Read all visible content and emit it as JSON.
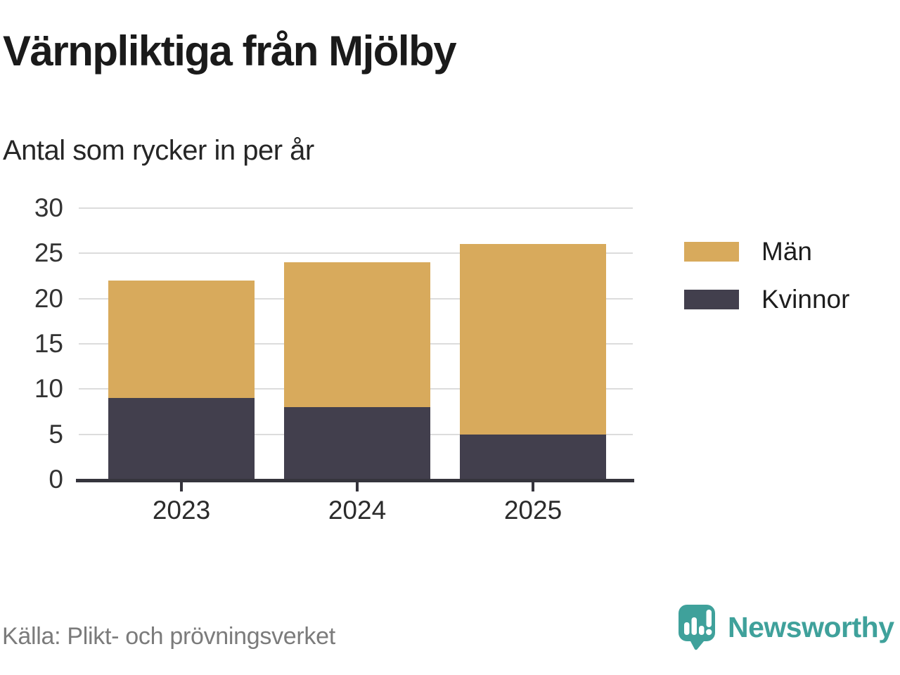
{
  "header": {
    "title": "Värnpliktiga från Mjölby",
    "subtitle": "Antal som rycker in per år"
  },
  "chart_data": {
    "type": "bar",
    "stacked": true,
    "title": "Värnpliktiga från Mjölby",
    "subtitle": "Antal som rycker in per år",
    "categories": [
      "2023",
      "2024",
      "2025"
    ],
    "series": [
      {
        "name": "Män",
        "color": "#d8aa5c",
        "values": [
          13,
          16,
          21
        ]
      },
      {
        "name": "Kvinnor",
        "color": "#423f4d",
        "values": [
          9,
          8,
          5
        ]
      }
    ],
    "totals": [
      22,
      24,
      26
    ],
    "xlabel": "",
    "ylabel": "",
    "ylim": [
      0,
      30
    ],
    "ytick_step": 5,
    "yticks": [
      0,
      5,
      10,
      15,
      20,
      25,
      30
    ],
    "grid": true,
    "legend_position": "right"
  },
  "footer": {
    "source": "Källa: Plikt- och prövningsverket",
    "brand": "Newsworthy",
    "brand_color": "#3fa19b"
  }
}
